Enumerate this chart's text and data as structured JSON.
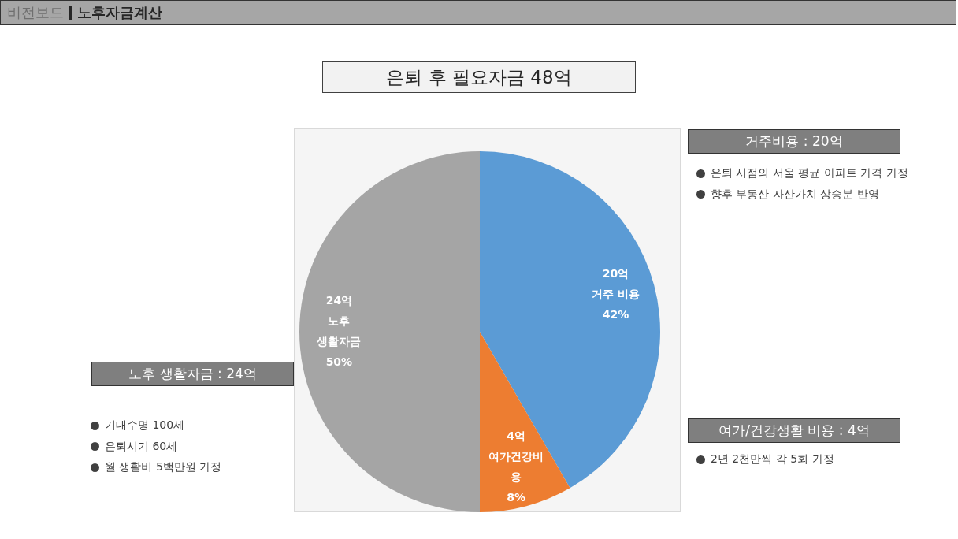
{
  "chart_data": {
    "type": "pie",
    "title": "은퇴 후 필요자금 48억",
    "categories": [
      "거주 비용",
      "여가건강비용",
      "노후 생활자금"
    ],
    "values": [
      20,
      4,
      24
    ],
    "colors": [
      "#5b9bd5",
      "#ed7d31",
      "#a5a5a5"
    ],
    "value_labels": [
      "20억",
      "4억",
      "24억"
    ],
    "legend": false,
    "annotations": [
      "비전보드",
      "노후자금계산",
      "거주비용 : 20억",
      "은퇴 시점의 서울 평균 아파트 가격 가정",
      "향후 부동산 자산가치 상승분 반영",
      "노후 생활자금 : 24억",
      "기대수명 100세",
      "은퇴시기 60세",
      "월 생활비 5백만원 가정",
      "여가/건강생활 비용 : 4억",
      "2년 2천만씩 각 5회 가정",
      {
        "text": "42%",
        "x": "거주 비용"
      },
      {
        "text": "8%",
        "x": "여가건강비용"
      },
      {
        "text": "50%",
        "x": "노후 생활자금"
      }
    ]
  }
}
